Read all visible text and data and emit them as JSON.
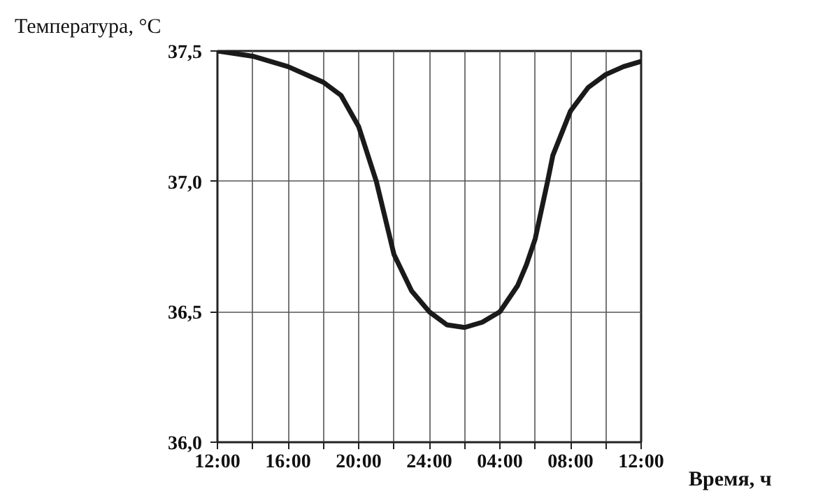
{
  "chart_data": {
    "type": "line",
    "xlabel": "Время, ч",
    "ylabel": "Температура, °C",
    "x": [
      "2000-01-01T12:00",
      "2000-01-01T14:00",
      "2000-01-01T16:00",
      "2000-01-01T18:00",
      "2000-01-01T19:00",
      "2000-01-01T20:00",
      "2000-01-01T21:00",
      "2000-01-01T22:00",
      "2000-01-01T23:00",
      "2000-01-02T00:00",
      "2000-01-02T01:00",
      "2000-01-02T02:00",
      "2000-01-02T03:00",
      "2000-01-02T04:00",
      "2000-01-02T05:00",
      "2000-01-02T05:30",
      "2000-01-02T06:00",
      "2000-01-02T06:42",
      "2000-01-02T07:00",
      "2000-01-02T08:00",
      "2000-01-02T09:00",
      "2000-01-02T10:00",
      "2000-01-02T11:00",
      "2000-01-02T12:00"
    ],
    "series": [
      {
        "color": "#1a1a1a",
        "values": [
          37.5,
          37.48,
          37.44,
          37.38,
          37.33,
          37.21,
          37.0,
          36.72,
          36.58,
          36.5,
          36.45,
          36.44,
          36.46,
          36.5,
          36.6,
          36.68,
          36.78,
          37.0,
          37.1,
          37.27,
          37.36,
          37.41,
          37.44,
          37.46
        ]
      }
    ],
    "xlim": [
      "2000-01-01T12:00",
      "2000-01-02T12:00"
    ],
    "xticks": [
      {
        "value": "2000-01-01T12:00",
        "label": "12:00"
      },
      {
        "value": "2000-01-01T14:00",
        "label": null
      },
      {
        "value": "2000-01-01T16:00",
        "label": "16:00"
      },
      {
        "value": "2000-01-01T18:00",
        "label": null
      },
      {
        "value": "2000-01-01T20:00",
        "label": "20:00"
      },
      {
        "value": "2000-01-01T22:00",
        "label": null
      },
      {
        "value": "2000-01-02T00:00",
        "label": "24:00"
      },
      {
        "value": "2000-01-02T02:00",
        "label": null
      },
      {
        "value": "2000-01-02T04:00",
        "label": "04:00"
      },
      {
        "value": "2000-01-02T06:00",
        "label": null
      },
      {
        "value": "2000-01-02T08:00",
        "label": "08:00"
      },
      {
        "value": "2000-01-02T10:00",
        "label": null
      },
      {
        "value": "2000-01-02T12:00",
        "label": "12:00"
      }
    ],
    "ylim": [
      36.0,
      37.5
    ],
    "yticks": [
      {
        "value": 36.0,
        "label": "36,0"
      },
      {
        "value": 36.5,
        "label": "36,5"
      },
      {
        "value": 37.0,
        "label": "37,0"
      },
      {
        "value": 37.5,
        "label": "37,5"
      }
    ],
    "grid": true,
    "line_style": "solid"
  }
}
